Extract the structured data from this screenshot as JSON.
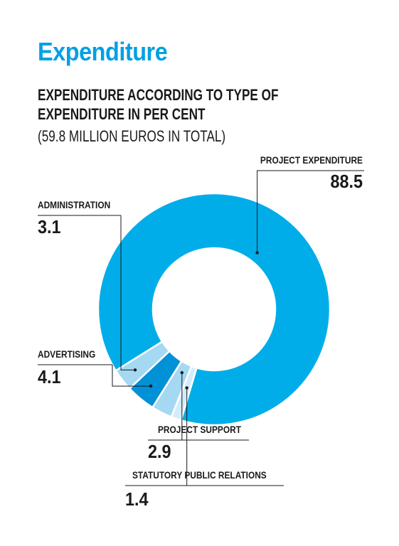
{
  "section_title": "Expenditure",
  "chart_data": {
    "type": "pie",
    "donut": true,
    "title_line1": "EXPENDITURE ACCORDING TO TYPE OF",
    "title_line2": "EXPENDITURE IN PER CENT",
    "subtitle": "(59.8 MILLION EUROS IN TOTAL)",
    "slices": [
      {
        "label": "PROJECT EXPENDITURE",
        "value": 88.5,
        "value_text": "88.5",
        "color": "#00ade9"
      },
      {
        "label": "STATUTORY PUBLIC RELATIONS",
        "value": 1.4,
        "value_text": "1.4",
        "color": "#d3ecf9"
      },
      {
        "label": "PROJECT SUPPORT",
        "value": 2.9,
        "value_text": "2.9",
        "color": "#a4d8f3"
      },
      {
        "label": "ADVERTISING",
        "value": 4.1,
        "value_text": "4.1",
        "color": "#0091d6"
      },
      {
        "label": "ADMINISTRATION",
        "value": 3.1,
        "value_text": "3.1",
        "color": "#a4d8f3"
      }
    ]
  }
}
